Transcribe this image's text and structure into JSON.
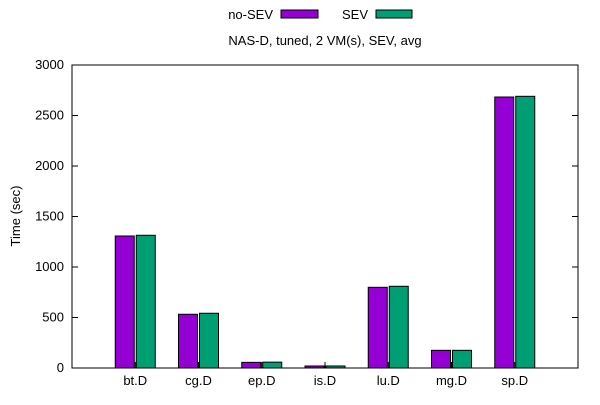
{
  "chart_data": {
    "type": "bar",
    "title": "NAS-D, tuned, 2 VM(s), SEV, avg",
    "xlabel": "",
    "ylabel": "Time (sec)",
    "ylim": [
      0,
      3000
    ],
    "yticks": [
      0,
      500,
      1000,
      1500,
      2000,
      2500,
      3000
    ],
    "categories": [
      "bt.D",
      "cg.D",
      "ep.D",
      "is.D",
      "lu.D",
      "mg.D",
      "sp.D"
    ],
    "series": [
      {
        "name": "no-SEV",
        "color": "#9400d3",
        "values": [
          1307,
          532,
          56,
          20,
          799,
          175,
          2683
        ]
      },
      {
        "name": "SEV",
        "color": "#009e73",
        "values": [
          1314,
          542,
          58,
          20,
          809,
          175,
          2690
        ]
      }
    ],
    "legend": "top-center",
    "grid": false
  }
}
